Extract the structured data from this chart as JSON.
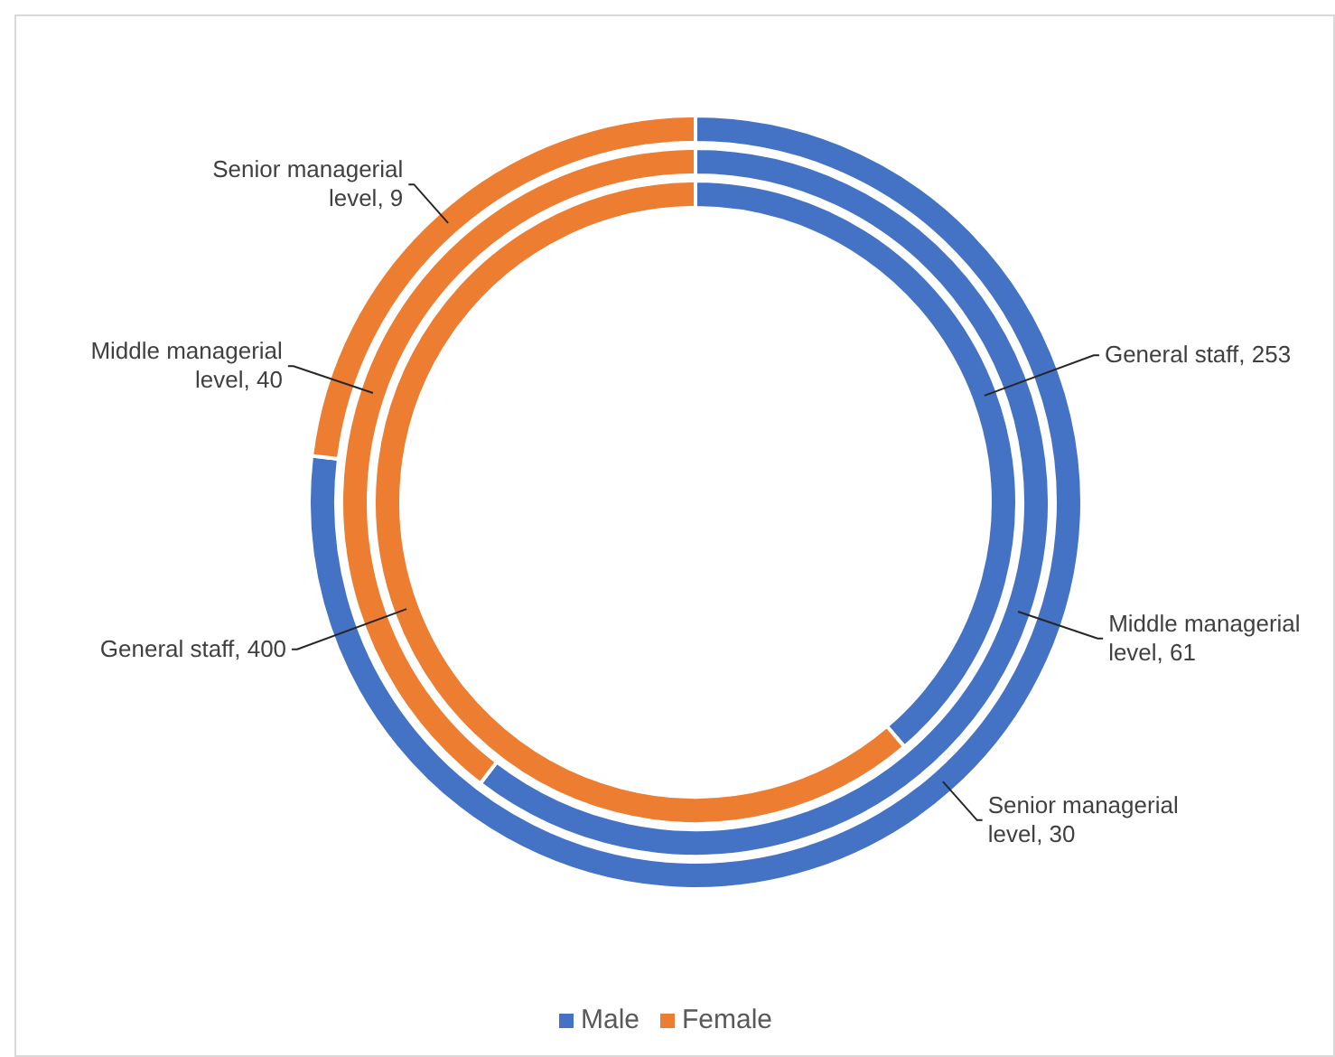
{
  "chart_data": {
    "type": "donut",
    "categories": [
      "Male",
      "Female"
    ],
    "colors": [
      "#4472c4",
      "#ed7d31"
    ],
    "series": [
      {
        "values": [
          30,
          9
        ],
        "value_labels": [
          "Senior managerial level, 30",
          "Senior managerial level, 9"
        ]
      },
      {
        "values": [
          61,
          40
        ],
        "value_labels": [
          "Middle managerial level, 61",
          "Middle managerial level, 40"
        ]
      },
      {
        "values": [
          253,
          400
        ],
        "value_labels": [
          "General staff, 253",
          "General staff, 400"
        ]
      }
    ],
    "legend": "bottom"
  }
}
